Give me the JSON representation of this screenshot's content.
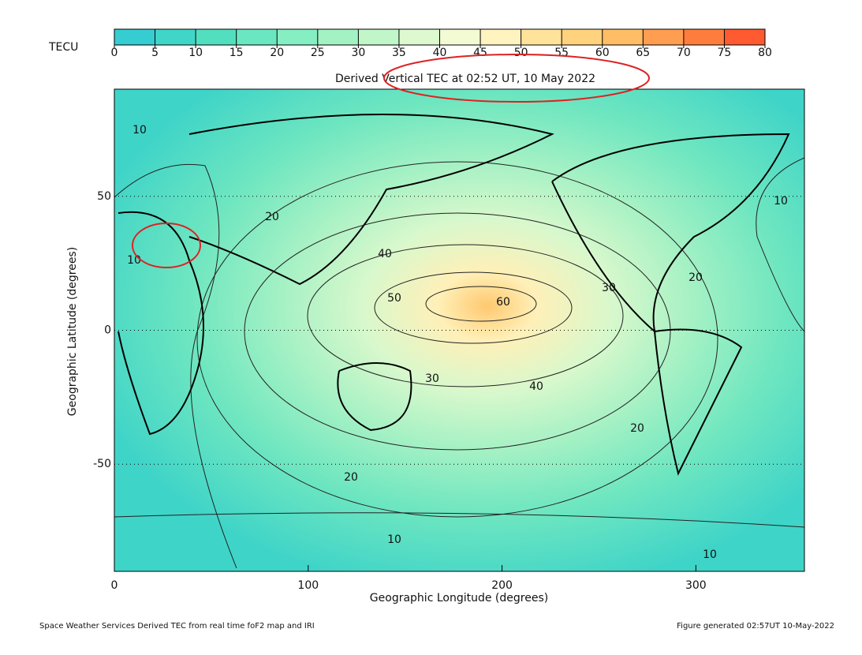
{
  "colorbar": {
    "label": "TECU",
    "lim": [
      0,
      80
    ],
    "ticks": [
      0,
      5,
      10,
      15,
      20,
      25,
      30,
      35,
      40,
      45,
      50,
      55,
      60,
      65,
      70,
      75,
      80
    ],
    "colors": [
      "#35cdd2",
      "#3fd6c8",
      "#52dfbf",
      "#6ae7c0",
      "#86eec3",
      "#a2f2c4",
      "#c0f6c8",
      "#dcf9cf",
      "#f2fbd4",
      "#fff3c0",
      "#ffe39a",
      "#ffd27e",
      "#ffbd66",
      "#ff9e50",
      "#ff7d3c",
      "#ff5a30"
    ]
  },
  "title": "Derived Vertical TEC at 02:52 UT, 10 May 2022",
  "axes": {
    "xlabel": "Geographic Longitude (degrees)",
    "ylabel": "Geographic Latitude (degrees)",
    "xlim": [
      0,
      356
    ],
    "ylim": [
      -90,
      90
    ],
    "xticks": [
      0,
      100,
      200,
      300
    ],
    "yticks": [
      -50,
      0,
      50
    ]
  },
  "contour_labels": [
    10,
    20,
    10,
    10,
    40,
    50,
    60,
    30,
    20,
    30,
    40,
    20,
    20,
    10,
    10
  ],
  "footer": {
    "left": "Space Weather Services Derived TEC from real time foF2 map and IRI",
    "right": "Figure generated 02:57UT 10-May-2022"
  }
}
